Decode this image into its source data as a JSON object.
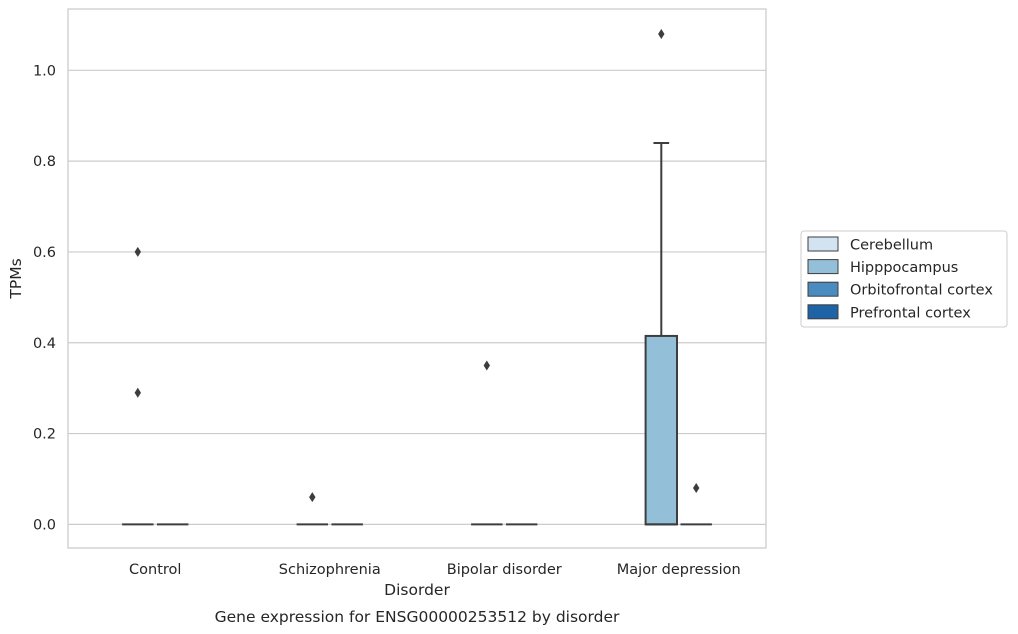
{
  "chart_data": {
    "type": "box",
    "title": "",
    "caption": "Gene expression for ENSG00000253512 by disorder",
    "xlabel": "Disorder",
    "ylabel": "TPMs",
    "categories": [
      "Control",
      "Schizophrenia",
      "Bipolar disorder",
      "Major depression"
    ],
    "ylim": [
      -0.052,
      1.135
    ],
    "yticks": [
      0.0,
      0.2,
      0.4,
      0.6,
      0.8,
      1.0
    ],
    "ytick_labels": [
      "0.0",
      "0.2",
      "0.4",
      "0.6",
      "0.8",
      "1.0"
    ],
    "grid": "horizontal",
    "legend_position": "right",
    "series": [
      {
        "name": "Cerebellum",
        "color": "#d4e3f2",
        "boxes": [
          null,
          null,
          null,
          null
        ]
      },
      {
        "name": "Hipppocampus",
        "color": "#93bfd9",
        "boxes": [
          {
            "q1": 0,
            "median": 0,
            "q3": 0,
            "whisker_low": 0,
            "whisker_high": 0,
            "outliers": [
              0.29,
              0.6
            ]
          },
          {
            "q1": 0,
            "median": 0,
            "q3": 0,
            "whisker_low": 0,
            "whisker_high": 0,
            "outliers": [
              0.06
            ]
          },
          {
            "q1": 0,
            "median": 0,
            "q3": 0,
            "whisker_low": 0,
            "whisker_high": 0,
            "outliers": [
              0.35
            ]
          },
          {
            "q1": 0,
            "median": 0,
            "q3": 0.415,
            "whisker_low": 0,
            "whisker_high": 0.84,
            "outliers": [
              1.08
            ]
          }
        ]
      },
      {
        "name": "Orbitofrontal cortex",
        "color": "#4a8cbf",
        "boxes": [
          {
            "q1": 0,
            "median": 0,
            "q3": 0,
            "whisker_low": 0,
            "whisker_high": 0,
            "outliers": []
          },
          {
            "q1": 0,
            "median": 0,
            "q3": 0,
            "whisker_low": 0,
            "whisker_high": 0,
            "outliers": []
          },
          {
            "q1": 0,
            "median": 0,
            "q3": 0,
            "whisker_low": 0,
            "whisker_high": 0,
            "outliers": []
          },
          {
            "q1": 0,
            "median": 0,
            "q3": 0,
            "whisker_low": 0,
            "whisker_high": 0,
            "outliers": [
              0.08
            ]
          }
        ]
      },
      {
        "name": "Prefrontal cortex",
        "color": "#1e63a6",
        "boxes": [
          null,
          null,
          null,
          null
        ]
      }
    ]
  }
}
